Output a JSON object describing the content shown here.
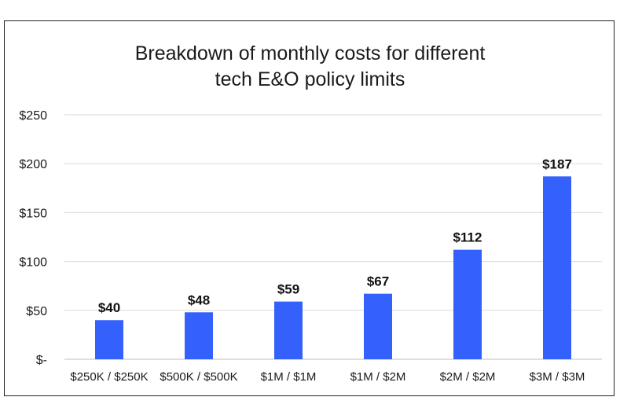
{
  "chart_data": {
    "type": "bar",
    "title_lines": [
      "Breakdown of monthly costs for different",
      "tech E&O policy limits"
    ],
    "categories": [
      "$250K / $250K",
      "$500K / $500K",
      "$1M / $1M",
      "$1M / $2M",
      "$2M / $2M",
      "$3M / $3M"
    ],
    "values": [
      40,
      48,
      59,
      67,
      112,
      187
    ],
    "data_labels": [
      "$40",
      "$48",
      "$59",
      "$67",
      "$112",
      "$187"
    ],
    "y_ticks": [
      0,
      50,
      100,
      150,
      200,
      250
    ],
    "y_tick_labels": [
      "$-",
      "$50",
      "$100",
      "$150",
      "$200",
      "$250"
    ],
    "ylim": [
      0,
      250
    ],
    "grid": true,
    "legend": "none",
    "bar_color": "#3460fb"
  }
}
